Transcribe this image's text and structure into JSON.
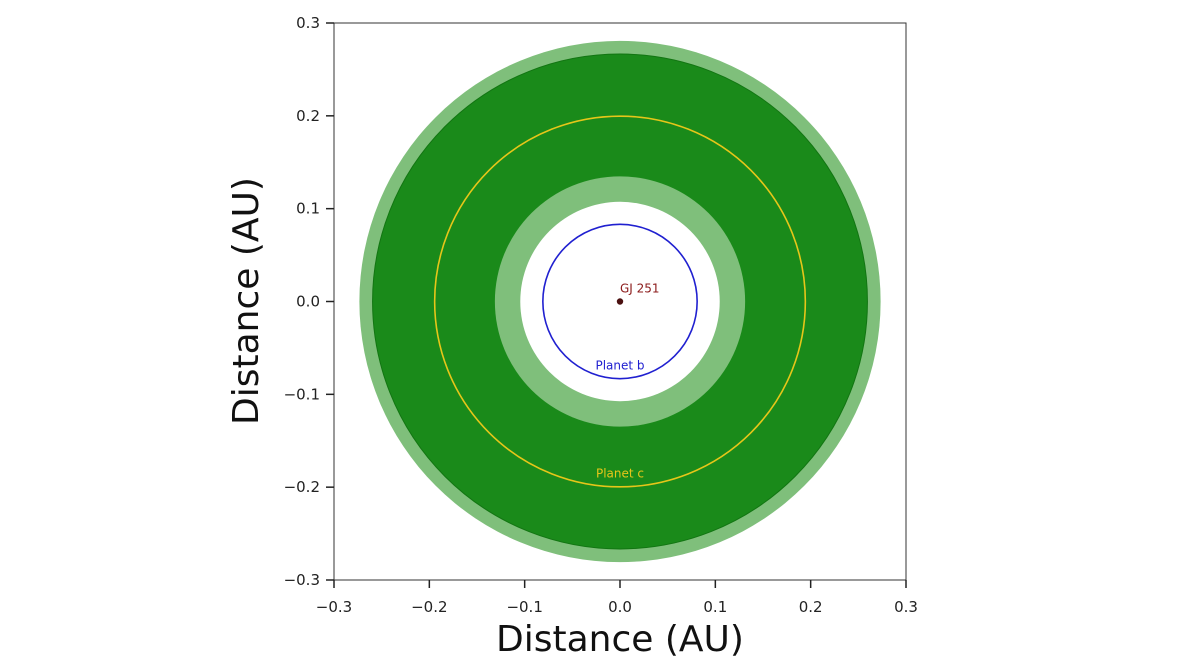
{
  "chart_data": {
    "type": "scatter",
    "title": "",
    "xlabel": "Distance (AU)",
    "ylabel": "Distance (AU)",
    "xlim": [
      -0.3,
      0.3
    ],
    "ylim": [
      -0.3,
      0.3
    ],
    "xticks": [
      -0.3,
      -0.2,
      -0.1,
      0.0,
      0.1,
      0.2,
      0.3
    ],
    "yticks": [
      -0.3,
      -0.2,
      -0.1,
      0.0,
      0.1,
      0.2,
      0.3
    ],
    "xtick_labels": [
      "−0.3",
      "−0.2",
      "−0.1",
      "0.0",
      "0.1",
      "0.2",
      "0.3"
    ],
    "ytick_labels": [
      "−0.3",
      "−0.2",
      "−0.1",
      "0.0",
      "0.1",
      "0.2",
      "0.3"
    ],
    "grid": false,
    "habitable_zone": {
      "optimistic": {
        "inner_au": 0.106,
        "outer_au": 0.277,
        "color": "#7fbf7b"
      },
      "conservative": {
        "inner_au": 0.133,
        "outer_au": 0.263,
        "color": "#1a8a1a"
      }
    },
    "star": {
      "label": "GJ 251",
      "x": 0.0,
      "y": 0.0,
      "color": "#4a1010",
      "label_color": "#8b1a1a"
    },
    "orbits": [
      {
        "label": "Planet b",
        "radius_au": 0.082,
        "color": "#2020d0"
      },
      {
        "label": "Planet c",
        "radius_au": 0.197,
        "color": "#e6c619"
      }
    ]
  }
}
